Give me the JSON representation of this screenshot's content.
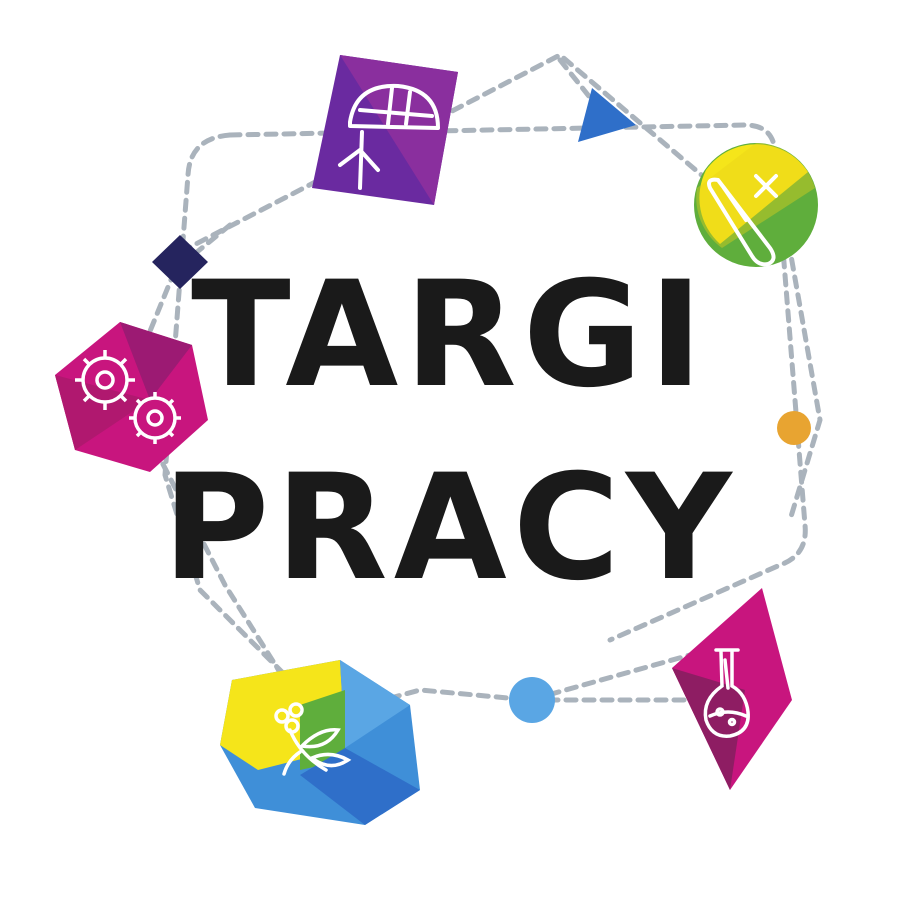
{
  "logo": {
    "title_line1": "TARGI",
    "title_line2": "PRACY",
    "colors": {
      "purple": "#6a2aa0",
      "magenta": "#c8157e",
      "yellow": "#f5e51a",
      "green": "#5fae3c",
      "blue": "#3f8fd8",
      "navy": "#25245e",
      "orange": "#e8a431",
      "light_blue": "#5aa6e4",
      "dashed_line": "#aab3bc"
    },
    "icons": [
      "engineer-helmet-icon",
      "thermometer-icon",
      "gears-icon",
      "laboratory-flask-icon",
      "plant-flower-icon"
    ]
  }
}
